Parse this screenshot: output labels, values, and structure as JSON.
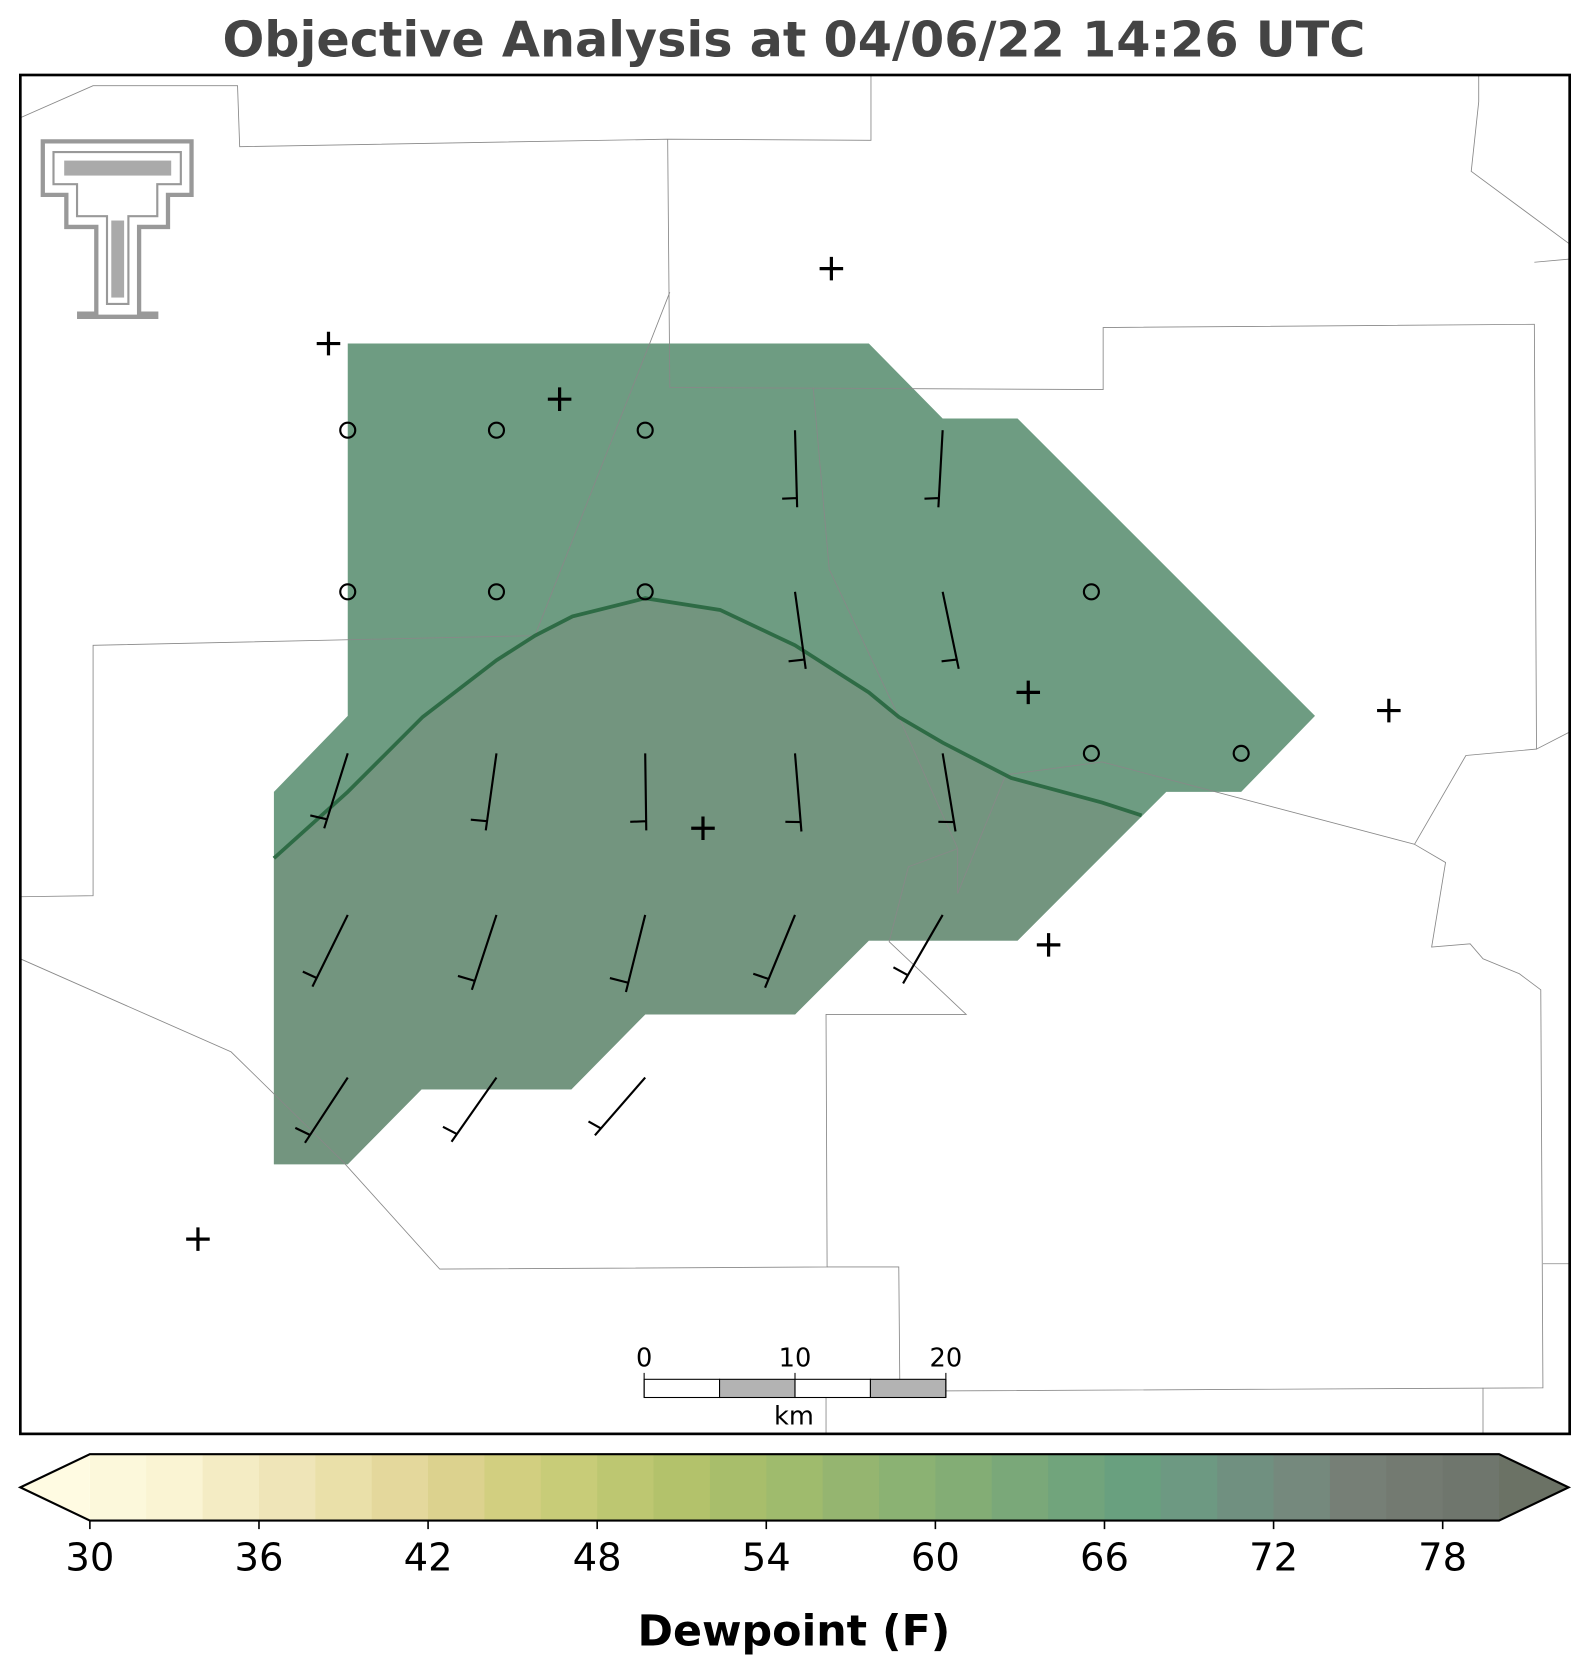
{
  "title": "Objective Analysis at 04/06/22 14:26 UTC",
  "colorbar": {
    "label": "Dewpoint (F)",
    "range": [
      30,
      80
    ],
    "ticks": [
      30,
      36,
      42,
      48,
      54,
      60,
      66,
      72,
      78
    ],
    "colors": [
      "#fcf8db",
      "#faf4d3",
      "#f4ecc4",
      "#efe5b8",
      "#eae0a9",
      "#e4d89c",
      "#dcd28e",
      "#d2cf80",
      "#c8cc78",
      "#bdc771",
      "#b3c26b",
      "#a8be6b",
      "#9fbb6d",
      "#95b570",
      "#8bb273",
      "#83ad75",
      "#7aa879",
      "#71a47c",
      "#69a07f",
      "#6d9982",
      "#709080",
      "#75897d",
      "#767f76",
      "#737a71",
      "#6f766d"
    ],
    "under_color": "#fffbe2",
    "over_color": "#6b7265"
  },
  "scale_bar": {
    "range": [
      0,
      20
    ],
    "ticks": [
      0,
      10,
      20
    ],
    "unit": "km"
  }
}
